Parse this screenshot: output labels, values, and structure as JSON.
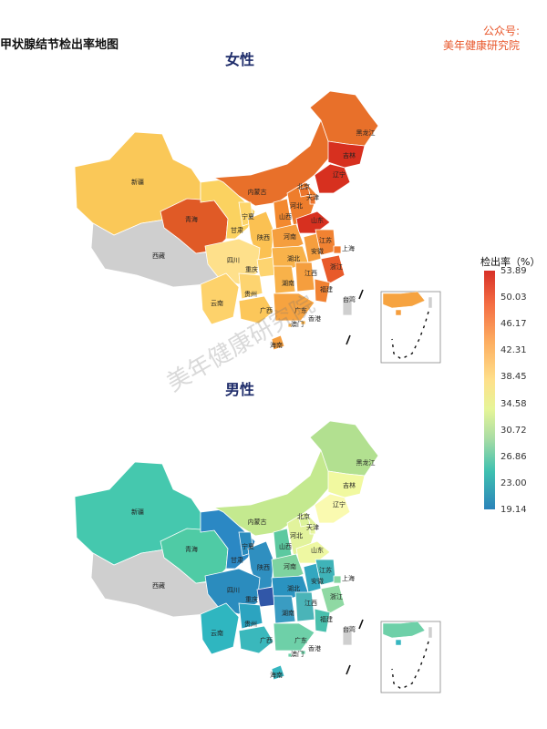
{
  "page_title": "甲状腺结节检出率地图",
  "brand": {
    "line1": "公众号:",
    "line2": "美年健康研究院"
  },
  "watermark": "美年健康研究院",
  "legend": {
    "title": "检出率（%）",
    "ticks": [
      "53.89",
      "50.03",
      "46.17",
      "42.31",
      "38.45",
      "34.58",
      "30.72",
      "26.86",
      "23.00",
      "19.14"
    ]
  },
  "colors": {
    "no_data": "#cfcfcf",
    "scale_high": "#d73027",
    "scale_low": "#2b83ba"
  },
  "panels": [
    {
      "title": "女性",
      "regions": [
        {
          "name": "新疆",
          "color": "#fac858"
        },
        {
          "name": "西藏",
          "color": "#cfcfcf"
        },
        {
          "name": "青海",
          "color": "#e05a26"
        },
        {
          "name": "甘肃",
          "color": "#fbd260"
        },
        {
          "name": "内蒙古",
          "color": "#e8702a"
        },
        {
          "name": "黑龙江",
          "color": "#e8702a"
        },
        {
          "name": "吉林",
          "color": "#d7301f"
        },
        {
          "name": "辽宁",
          "color": "#d7301f"
        },
        {
          "name": "宁夏",
          "color": "#fdd56a"
        },
        {
          "name": "陕西",
          "color": "#fbc152"
        },
        {
          "name": "山西",
          "color": "#f3892f"
        },
        {
          "name": "河北",
          "color": "#ee7d2c"
        },
        {
          "name": "北京",
          "color": "#ec742b"
        },
        {
          "name": "天津",
          "color": "#ec742b"
        },
        {
          "name": "山东",
          "color": "#d7301f"
        },
        {
          "name": "河南",
          "color": "#f59e3e"
        },
        {
          "name": "四川",
          "color": "#fee08b"
        },
        {
          "name": "重庆",
          "color": "#fdd470"
        },
        {
          "name": "湖北",
          "color": "#f8b24a"
        },
        {
          "name": "安徽",
          "color": "#f59e3e"
        },
        {
          "name": "江苏",
          "color": "#f18232"
        },
        {
          "name": "上海",
          "color": "#f07b2e"
        },
        {
          "name": "浙江",
          "color": "#e85a2a"
        },
        {
          "name": "云南",
          "color": "#fdd26b"
        },
        {
          "name": "贵州",
          "color": "#fdd470"
        },
        {
          "name": "湖南",
          "color": "#f8b24a"
        },
        {
          "name": "江西",
          "color": "#f59e3e"
        },
        {
          "name": "福建",
          "color": "#f18232"
        },
        {
          "name": "广西",
          "color": "#fcc75a"
        },
        {
          "name": "广东",
          "color": "#f6a340"
        },
        {
          "name": "澳门",
          "color": "#f8b24a"
        },
        {
          "name": "香港",
          "color": "#f8b24a"
        },
        {
          "name": "海南",
          "color": "#f59e3e"
        },
        {
          "name": "台湾",
          "color": "#cfcfcf"
        }
      ]
    },
    {
      "title": "男性",
      "regions": [
        {
          "name": "新疆",
          "color": "#45c8ae"
        },
        {
          "name": "西藏",
          "color": "#cfcfcf"
        },
        {
          "name": "青海",
          "color": "#4fcba5"
        },
        {
          "name": "甘肃",
          "color": "#2b88c4"
        },
        {
          "name": "内蒙古",
          "color": "#c4e98f"
        },
        {
          "name": "黑龙江",
          "color": "#b2e090"
        },
        {
          "name": "吉林",
          "color": "#f1f9a0"
        },
        {
          "name": "辽宁",
          "color": "#fafab0"
        },
        {
          "name": "宁夏",
          "color": "#2b8cbe"
        },
        {
          "name": "陕西",
          "color": "#2f8fc0"
        },
        {
          "name": "山西",
          "color": "#5cc9a0"
        },
        {
          "name": "河北",
          "color": "#e2f39c"
        },
        {
          "name": "北京",
          "color": "#dcf39a"
        },
        {
          "name": "天津",
          "color": "#e7f59e"
        },
        {
          "name": "山东",
          "color": "#eef8a2"
        },
        {
          "name": "河南",
          "color": "#7ed3a0"
        },
        {
          "name": "四川",
          "color": "#2b8cbe"
        },
        {
          "name": "重庆",
          "color": "#3157a8"
        },
        {
          "name": "湖北",
          "color": "#2a93c0"
        },
        {
          "name": "安徽",
          "color": "#33a7c0"
        },
        {
          "name": "江苏",
          "color": "#3fb3b8"
        },
        {
          "name": "上海",
          "color": "#86d6a2"
        },
        {
          "name": "浙江",
          "color": "#8fd9a3"
        },
        {
          "name": "云南",
          "color": "#2fb6c0"
        },
        {
          "name": "贵州",
          "color": "#2ca4c0"
        },
        {
          "name": "湖南",
          "color": "#3a9cc2"
        },
        {
          "name": "江西",
          "color": "#4ab4b8"
        },
        {
          "name": "福建",
          "color": "#49c0ad"
        },
        {
          "name": "广西",
          "color": "#3ab8bc"
        },
        {
          "name": "广东",
          "color": "#6ed0a8"
        },
        {
          "name": "澳门",
          "color": "#6ed0a8"
        },
        {
          "name": "香港",
          "color": "#6ed0a8"
        },
        {
          "name": "海南",
          "color": "#36b6c0"
        },
        {
          "name": "台湾",
          "color": "#cfcfcf"
        }
      ]
    }
  ]
}
